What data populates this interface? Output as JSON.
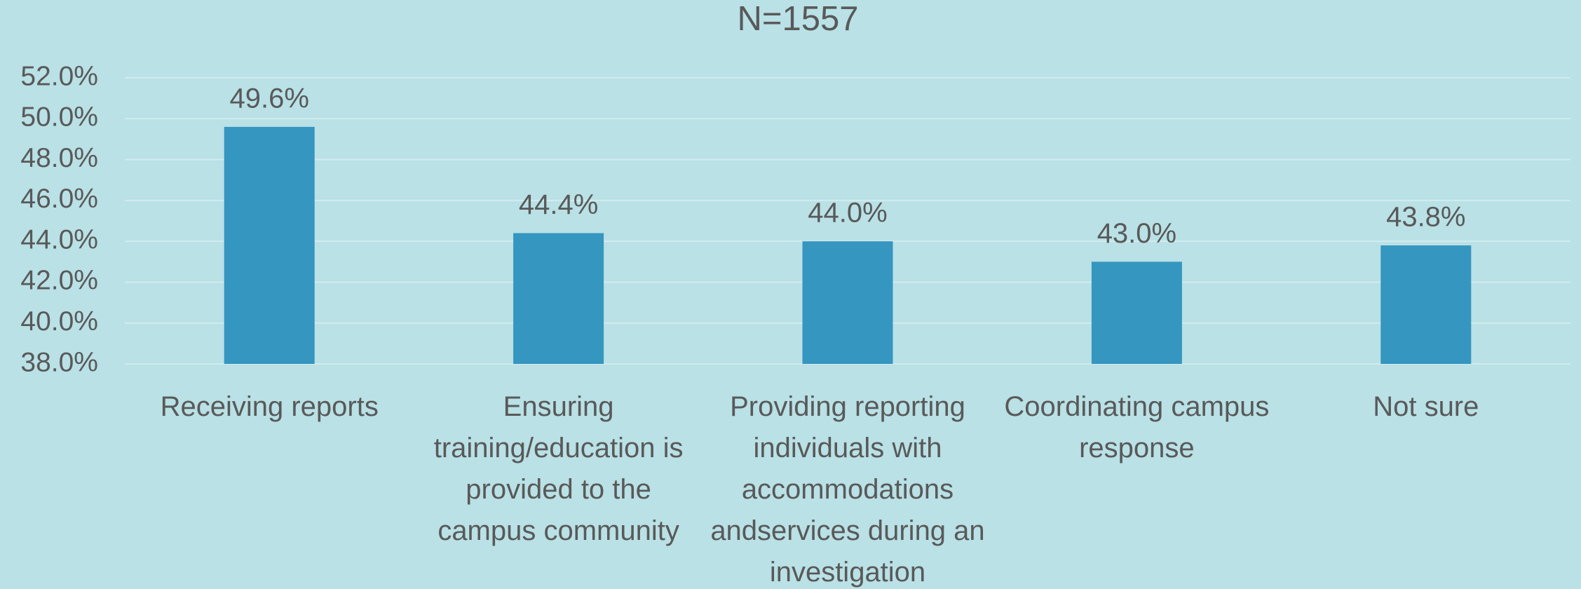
{
  "chart_data": {
    "type": "bar",
    "title": "N=1557",
    "categories": [
      "Receiving reports",
      "Ensuring training/education is provided to the campus community",
      "Providing reporting individuals with accommodations andservices during an investigation",
      "Coordinating campus response",
      "Not sure"
    ],
    "values": [
      49.6,
      44.4,
      44.0,
      43.0,
      43.8
    ],
    "value_labels": [
      "49.6%",
      "44.4%",
      "44.0%",
      "43.0%",
      "43.8%"
    ],
    "color": "#3596bf",
    "ylim": [
      38,
      52
    ],
    "yticks": [
      {
        "value": 38,
        "label": "38.0%"
      },
      {
        "value": 40,
        "label": "40.0%"
      },
      {
        "value": 42,
        "label": "42.0%"
      },
      {
        "value": 44,
        "label": "44.0%"
      },
      {
        "value": 46,
        "label": "46.0%"
      },
      {
        "value": 48,
        "label": "48.0%"
      },
      {
        "value": 50,
        "label": "50.0%"
      },
      {
        "value": 52,
        "label": "52.0%"
      }
    ],
    "grid": true
  }
}
